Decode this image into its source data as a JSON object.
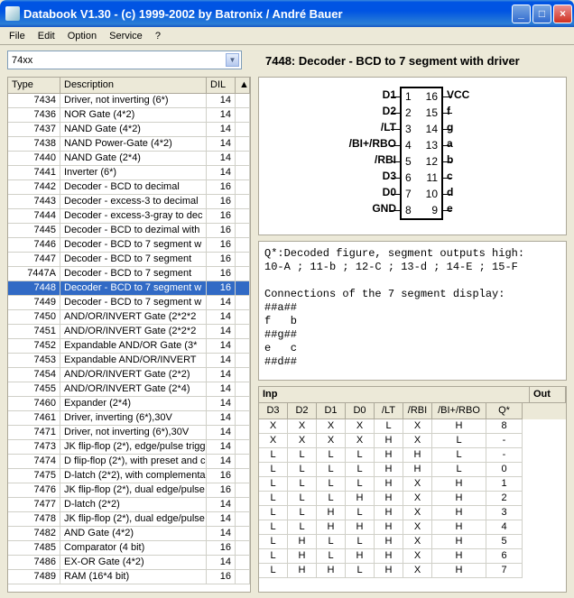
{
  "window": {
    "title": "Databook V1.30  -  (c) 1999-2002 by Batronix / André Bauer"
  },
  "menu": {
    "items": [
      "File",
      "Edit",
      "Option",
      "Service",
      "?"
    ]
  },
  "combo": {
    "value": "74xx"
  },
  "grid": {
    "headers": {
      "type": "Type",
      "desc": "Description",
      "dil": "DIL",
      "scroll": "▲"
    },
    "rows": [
      {
        "t": "7434",
        "d": "Driver, not inverting (6*)",
        "p": "14"
      },
      {
        "t": "7436",
        "d": "NOR Gate (4*2)",
        "p": "14"
      },
      {
        "t": "7437",
        "d": "NAND Gate (4*2)",
        "p": "14"
      },
      {
        "t": "7438",
        "d": "NAND Power-Gate (4*2)",
        "p": "14"
      },
      {
        "t": "7440",
        "d": "NAND Gate (2*4)",
        "p": "14"
      },
      {
        "t": "7441",
        "d": "Inverter (6*)",
        "p": "14"
      },
      {
        "t": "7442",
        "d": "Decoder - BCD to decimal",
        "p": "16"
      },
      {
        "t": "7443",
        "d": "Decoder - excess-3 to decimal",
        "p": "16"
      },
      {
        "t": "7444",
        "d": "Decoder - excess-3-gray to dec",
        "p": "16"
      },
      {
        "t": "7445",
        "d": "Decoder - BCD to dezimal with",
        "p": "16"
      },
      {
        "t": "7446",
        "d": "Decoder - BCD to 7 segment w",
        "p": "16"
      },
      {
        "t": "7447",
        "d": "Decoder - BCD to 7 segment",
        "p": "16"
      },
      {
        "t": "7447A",
        "d": "Decoder - BCD to 7 segment",
        "p": "16"
      },
      {
        "t": "7448",
        "d": "Decoder - BCD to 7 segment w",
        "p": "16",
        "sel": true
      },
      {
        "t": "7449",
        "d": "Decoder - BCD to 7 segment w",
        "p": "14"
      },
      {
        "t": "7450",
        "d": "AND/OR/INVERT Gate (2*2*2",
        "p": "14"
      },
      {
        "t": "7451",
        "d": "AND/OR/INVERT Gate (2*2*2",
        "p": "14"
      },
      {
        "t": "7452",
        "d": "Expandable AND/OR Gate (3*",
        "p": "14"
      },
      {
        "t": "7453",
        "d": "Expandable AND/OR/INVERT",
        "p": "14"
      },
      {
        "t": "7454",
        "d": "AND/OR/INVERT Gate (2*2)",
        "p": "14"
      },
      {
        "t": "7455",
        "d": "AND/OR/INVERT Gate (2*4)",
        "p": "14"
      },
      {
        "t": "7460",
        "d": "Expander (2*4)",
        "p": "14"
      },
      {
        "t": "7461",
        "d": "Driver, inverting (6*),30V",
        "p": "14"
      },
      {
        "t": "7471",
        "d": "Driver, not inverting (6*),30V",
        "p": "14"
      },
      {
        "t": "7473",
        "d": "JK flip-flop (2*), edge/pulse trigg",
        "p": "14"
      },
      {
        "t": "7474",
        "d": "D flip-flop (2*), with preset and c",
        "p": "14"
      },
      {
        "t": "7475",
        "d": "D-latch (2*2), with complementa",
        "p": "16"
      },
      {
        "t": "7476",
        "d": "JK flip-flop (2*), dual edge/pulse",
        "p": "16"
      },
      {
        "t": "7477",
        "d": "D-latch (2*2)",
        "p": "14"
      },
      {
        "t": "7478",
        "d": "JK flip-flop (2*), dual edge/pulse",
        "p": "14"
      },
      {
        "t": "7482",
        "d": "AND Gate (4*2)",
        "p": "14"
      },
      {
        "t": "7485",
        "d": "Comparator (4 bit)",
        "p": "16"
      },
      {
        "t": "7486",
        "d": "EX-OR Gate (4*2)",
        "p": "14"
      },
      {
        "t": "7489",
        "d": "RAM (16*4 bit)",
        "p": "16"
      }
    ]
  },
  "detail": {
    "title": "7448:  Decoder - BCD to 7 segment with driver",
    "pins": {
      "left": [
        "D1",
        "D2",
        "/LT",
        "/BI+/RBO",
        "/RBI",
        "D3",
        "D0",
        "GND"
      ],
      "lnum": [
        "1",
        "2",
        "3",
        "4",
        "5",
        "6",
        "7",
        "8"
      ],
      "rnum": [
        "16",
        "15",
        "14",
        "13",
        "12",
        "11",
        "10",
        "9"
      ],
      "right": [
        "VCC",
        "f",
        "g",
        "a",
        "b",
        "c",
        "d",
        "e"
      ]
    },
    "notes": "Q*:Decoded figure, segment outputs high:\n10-A ; 11-b ; 12-C ; 13-d ; 14-E ; 15-F\n\nConnections of the 7 segment display:\n##a##\nf   b\n##g##\ne   c\n##d##",
    "truth": {
      "grpInp": "Inp",
      "grpOut": "Out",
      "cols": [
        "D3",
        "D2",
        "D1",
        "D0",
        "/LT",
        "/RBI",
        "/BI+/RBO",
        "Q*"
      ],
      "rows": [
        [
          "X",
          "X",
          "X",
          "X",
          "L",
          "X",
          "H",
          "8"
        ],
        [
          "X",
          "X",
          "X",
          "X",
          "H",
          "X",
          "L",
          "-"
        ],
        [
          "L",
          "L",
          "L",
          "L",
          "H",
          "H",
          "L",
          "-"
        ],
        [
          "L",
          "L",
          "L",
          "L",
          "H",
          "H",
          "L",
          "0"
        ],
        [
          "L",
          "L",
          "L",
          "L",
          "H",
          "X",
          "H",
          "1"
        ],
        [
          "L",
          "L",
          "L",
          "H",
          "H",
          "X",
          "H",
          "2"
        ],
        [
          "L",
          "L",
          "H",
          "L",
          "H",
          "X",
          "H",
          "3"
        ],
        [
          "L",
          "L",
          "H",
          "H",
          "H",
          "X",
          "H",
          "4"
        ],
        [
          "L",
          "H",
          "L",
          "L",
          "H",
          "X",
          "H",
          "5"
        ],
        [
          "L",
          "H",
          "L",
          "H",
          "H",
          "X",
          "H",
          "6"
        ],
        [
          "L",
          "H",
          "H",
          "L",
          "H",
          "X",
          "H",
          "7"
        ]
      ]
    }
  }
}
